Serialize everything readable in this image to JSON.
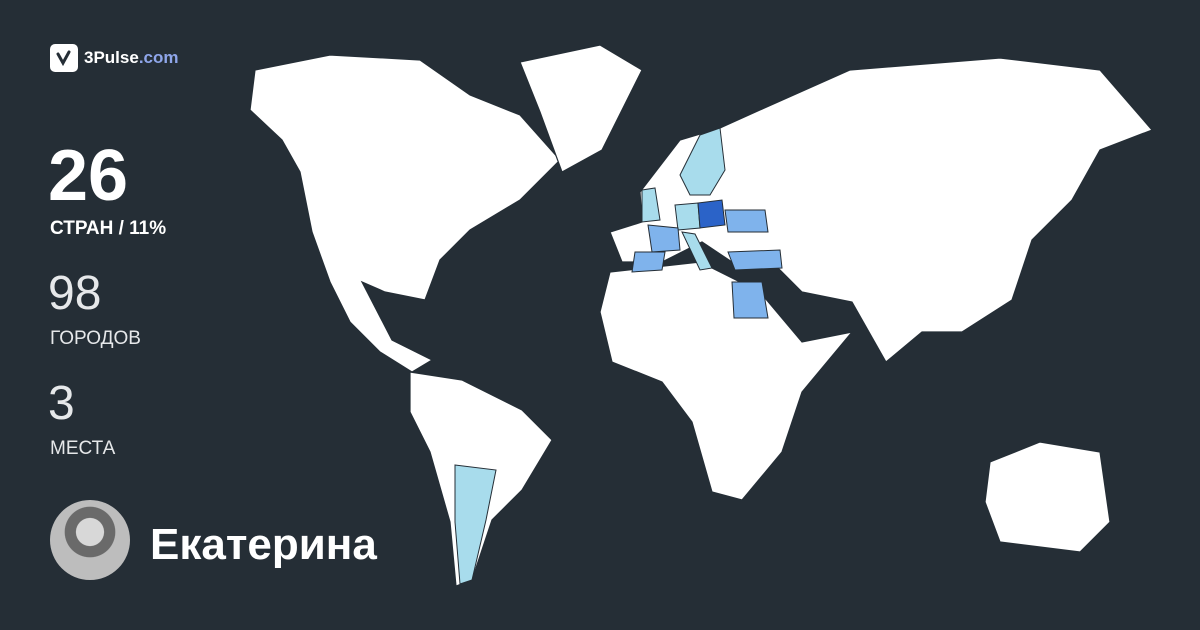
{
  "logo": {
    "brand": "3Pulse",
    "domain": ".com"
  },
  "stats": {
    "countries": {
      "value": "26",
      "label": "СТРАН / 11%"
    },
    "cities": {
      "value": "98",
      "label": "ГОРОДОВ"
    },
    "places": {
      "value": "3",
      "label": "МЕСТА"
    }
  },
  "user": {
    "name": "Екатерина"
  },
  "colors": {
    "background": "#252e36",
    "land": "#ffffff",
    "visited_light": "#a8dcec",
    "visited_medium": "#7fb3ec",
    "visited_dark": "#2b63c8",
    "accent": "#8fa6ea"
  }
}
